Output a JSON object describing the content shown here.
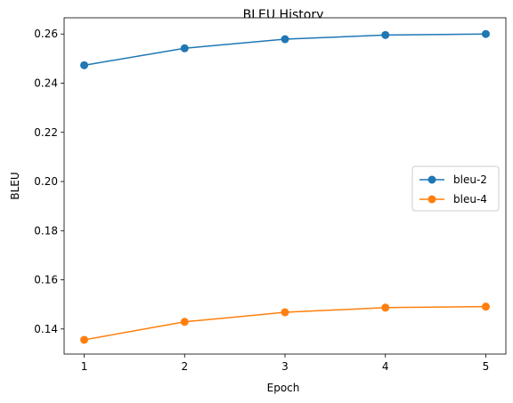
{
  "chart_data": {
    "type": "line",
    "title": "BLEU History",
    "xlabel": "Epoch",
    "ylabel": "BLEU",
    "x": [
      1,
      2,
      3,
      4,
      5
    ],
    "xlim": [
      0.8,
      5.2
    ],
    "ylim": [
      0.1298,
      0.2666
    ],
    "xticks": [
      1,
      2,
      3,
      4,
      5
    ],
    "yticks": [
      0.14,
      0.16,
      0.18,
      0.2,
      0.22,
      0.24,
      0.26
    ],
    "ytick_labels": [
      "0.14",
      "0.16",
      "0.18",
      "0.20",
      "0.22",
      "0.24",
      "0.26"
    ],
    "grid": false,
    "legend_position": "center-right",
    "series": [
      {
        "name": "bleu-2",
        "color": "#1f77b4",
        "marker": "circle",
        "values": [
          0.2473,
          0.2542,
          0.2579,
          0.2596,
          0.26
        ]
      },
      {
        "name": "bleu-4",
        "color": "#ff7f0e",
        "marker": "circle",
        "values": [
          0.1356,
          0.1429,
          0.1468,
          0.1487,
          0.1491
        ]
      }
    ]
  }
}
